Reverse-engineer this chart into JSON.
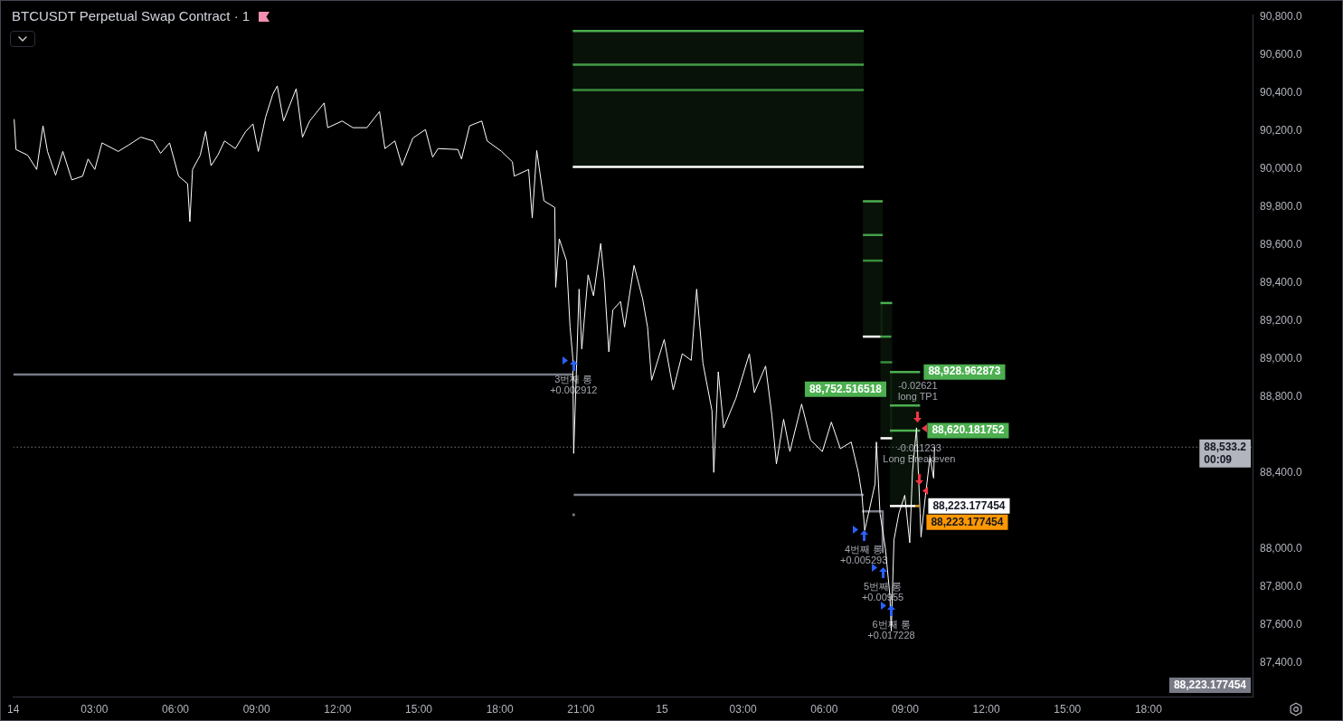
{
  "chart_data": {
    "type": "line",
    "title": "BTCUSDT Perpetual Swap Contract · 1",
    "xlim": [
      "--12-14T00:00",
      "--12-15T21:51"
    ],
    "xticks": [
      {
        "value": "--12-14T00:00",
        "label": "14"
      },
      {
        "value": "--12-14T03:00",
        "label": "03:00"
      },
      {
        "value": "--12-14T06:00",
        "label": "06:00"
      },
      {
        "value": "--12-14T09:00",
        "label": "09:00"
      },
      {
        "value": "--12-14T12:00",
        "label": "12:00"
      },
      {
        "value": "--12-14T15:00",
        "label": "15:00"
      },
      {
        "value": "--12-14T18:00",
        "label": "18:00"
      },
      {
        "value": "--12-14T21:00",
        "label": "21:00"
      },
      {
        "value": "--12-15T00:00",
        "label": "15"
      },
      {
        "value": "--12-15T03:00",
        "label": "03:00"
      },
      {
        "value": "--12-15T06:00",
        "label": "06:00"
      },
      {
        "value": "--12-15T09:00",
        "label": "09:00"
      },
      {
        "value": "--12-15T12:00",
        "label": "12:00"
      },
      {
        "value": "--12-15T15:00",
        "label": "15:00"
      },
      {
        "value": "--12-15T18:00",
        "label": "18:00"
      }
    ],
    "ylim": [
      87220,
      90810
    ],
    "yticks": [
      {
        "value": 87400,
        "label": "87,400.0"
      },
      {
        "value": 87600,
        "label": "87,600.0"
      },
      {
        "value": 87800,
        "label": "87,800.0"
      },
      {
        "value": 88000,
        "label": "88,000.0"
      },
      {
        "value": 88400,
        "label": "88,400.0"
      },
      {
        "value": 88800,
        "label": "88,800.0"
      },
      {
        "value": 89000,
        "label": "89,000.0"
      },
      {
        "value": 89200,
        "label": "89,200.0"
      },
      {
        "value": 89400,
        "label": "89,400.0"
      },
      {
        "value": 89600,
        "label": "89,600.0"
      },
      {
        "value": 89800,
        "label": "89,800.0"
      },
      {
        "value": 90000,
        "label": "90,000.0"
      },
      {
        "value": 90200,
        "label": "90,200.0"
      },
      {
        "value": 90400,
        "label": "90,400.0"
      },
      {
        "value": 90600,
        "label": "90,600.0"
      },
      {
        "value": 90800,
        "label": "90,800.0"
      }
    ],
    "series": [
      {
        "color": "#ffffff",
        "x": [
          "--12-14T00:02",
          "--12-14T00:06",
          "--12-14T00:32",
          "--12-14T00:52",
          "--12-14T01:06",
          "--12-14T01:16",
          "--12-14T01:34",
          "--12-14T01:50",
          "--12-14T02:10",
          "--12-14T02:34",
          "--12-14T02:46",
          "--12-14T03:01",
          "--12-14T03:17",
          "--12-14T03:53",
          "--12-14T04:17",
          "--12-14T04:43",
          "--12-14T05:11",
          "--12-14T05:27",
          "--12-14T05:47",
          "--12-14T06:07",
          "--12-14T06:27",
          "--12-14T06:32",
          "--12-14T06:38",
          "--12-14T06:55",
          "--12-14T07:07",
          "--12-14T07:19",
          "--12-14T07:34",
          "--12-14T07:49",
          "--12-14T08:13",
          "--12-14T08:36",
          "--12-14T08:52",
          "--12-14T09:04",
          "--12-14T09:20",
          "--12-14T09:36",
          "--12-14T09:46",
          "--12-14T10:00",
          "--12-14T10:28",
          "--12-14T10:42",
          "--12-14T10:58",
          "--12-14T11:30",
          "--12-14T11:38",
          "--12-14T12:10",
          "--12-14T12:34",
          "--12-14T13:05",
          "--12-14T13:33",
          "--12-14T13:45",
          "--12-14T14:07",
          "--12-14T14:23",
          "--12-14T14:47",
          "--12-14T15:15",
          "--12-14T15:31",
          "--12-14T15:43",
          "--12-14T16:27",
          "--12-14T16:35",
          "--12-14T16:53",
          "--12-14T17:20",
          "--12-14T17:32",
          "--12-14T18:04",
          "--12-14T18:28",
          "--12-14T18:32",
          "--12-14T19:04",
          "--12-14T19:12",
          "--12-14T19:22",
          "--12-14T19:38",
          "--12-14T20:02",
          "--12-14T20:04",
          "--12-14T20:12",
          "--12-14T20:28",
          "--12-14T20:36",
          "--12-14T20:42",
          "--12-14T20:44",
          "--12-14T20:56",
          "--12-14T21:02",
          "--12-14T21:16",
          "--12-14T21:28",
          "--12-14T21:44",
          "--12-14T21:52",
          "--12-14T22:02",
          "--12-14T22:11",
          "--12-14T22:28",
          "--12-14T22:37",
          "--12-14T22:58",
          "--12-14T23:17",
          "--12-14T23:28",
          "--12-14T23:37",
          "--12-15T00:05",
          "--12-15T00:25",
          "--12-15T00:45",
          "--12-15T01:05",
          "--12-15T01:17",
          "--12-15T01:31",
          "--12-15T01:51",
          "--12-15T01:55",
          "--12-15T02:05",
          "--12-15T02:17",
          "--12-15T02:44",
          "--12-15T03:14",
          "--12-15T03:25",
          "--12-15T03:50",
          "--12-15T04:04",
          "--12-15T04:14",
          "--12-15T04:30",
          "--12-15T04:44",
          "--12-15T05:10",
          "--12-15T05:30",
          "--12-15T05:56",
          "--12-15T06:16",
          "--12-15T06:36",
          "--12-15T07:00",
          "--12-15T07:16",
          "--12-15T07:24",
          "--12-15T07:30",
          "--12-15T07:40",
          "--12-15T07:53",
          "--12-15T07:56",
          "--12-15T08:04",
          "--12-15T08:16",
          "--12-15T08:26",
          "--12-15T08:29",
          "--12-15T08:35",
          "--12-15T08:46",
          "--12-15T08:59",
          "--12-15T09:10",
          "--12-15T09:16",
          "--12-15T09:25",
          "--12-15T09:33",
          "--12-15T09:35",
          "--12-15T09:45",
          "--12-15T09:55",
          "--12-15T10:03",
          "--12-15T10:05"
        ],
        "values": [
          90260,
          90100,
          90070,
          89995,
          90225,
          90090,
          89965,
          90090,
          89940,
          89960,
          90050,
          89995,
          90135,
          90090,
          90125,
          90165,
          90145,
          90080,
          90135,
          89960,
          89920,
          89720,
          89995,
          90070,
          90195,
          90015,
          90070,
          90145,
          90105,
          90195,
          90235,
          90090,
          90270,
          90390,
          90435,
          90250,
          90420,
          90165,
          90250,
          90345,
          90215,
          90250,
          90215,
          90215,
          90300,
          90105,
          90145,
          90015,
          90160,
          90205,
          90060,
          90105,
          90100,
          90050,
          90225,
          90250,
          90145,
          90090,
          90035,
          89960,
          89995,
          89740,
          90095,
          89830,
          89795,
          89375,
          89630,
          89515,
          89165,
          89005,
          88500,
          89365,
          89050,
          89440,
          89330,
          89605,
          89410,
          89035,
          89255,
          89300,
          89165,
          89490,
          89315,
          89165,
          88885,
          89100,
          88835,
          89025,
          88990,
          89365,
          88975,
          88725,
          88400,
          88930,
          88635,
          88790,
          89025,
          88820,
          88960,
          88700,
          88445,
          88680,
          88510,
          88760,
          88570,
          88510,
          88665,
          88525,
          88560,
          88400,
          88280,
          88095,
          88200,
          88340,
          88560,
          88185,
          88000,
          87750,
          87565,
          88045,
          88185,
          88280,
          88030,
          88400,
          88635,
          88185,
          88060,
          88280,
          88480,
          88370,
          88533.2
        ]
      },
      {
        "color": "#787b86",
        "x": [
          "--12-14T00:00",
          "--12-14T20:42"
        ],
        "values": [
          88915,
          88915
        ]
      },
      {
        "color": "#787b86",
        "x": [
          "--12-14T20:44",
          "--12-15T07:28"
        ],
        "values": [
          88282,
          88282
        ]
      },
      {
        "color": "#787b86",
        "x": [
          "--12-15T07:24",
          "--12-15T08:10",
          "--12-15T08:10"
        ],
        "values": [
          88195,
          88195,
          87981
        ]
      },
      {
        "type": "scatter",
        "marker": "square",
        "color": "#787b86",
        "x": [
          "--12-14T20:44"
        ],
        "values": [
          88177
        ]
      },
      {
        "color": "#4caf50",
        "x": [
          "--12-14T20:42",
          "--12-15T07:28"
        ],
        "values": [
          90724,
          90724
        ],
        "lower": [
          90008,
          90008
        ],
        "upper": [
          90724,
          90724
        ]
      },
      {
        "color": "#43a047",
        "x": [
          "--12-14T20:42",
          "--12-15T07:28"
        ],
        "values": [
          90547,
          90547
        ]
      },
      {
        "color": "#388e3c",
        "x": [
          "--12-14T20:42",
          "--12-15T07:28"
        ],
        "values": [
          90413,
          90413
        ]
      },
      {
        "color": "#ffffff",
        "x": [
          "--12-14T20:42",
          "--12-15T07:28"
        ],
        "values": [
          90008,
          90008
        ]
      },
      {
        "color": "#4caf50",
        "x": [
          "--12-15T07:26",
          "--12-15T08:10"
        ],
        "values": [
          89827,
          89827
        ],
        "lower": [
          89115,
          89115
        ],
        "upper": [
          89827,
          89827
        ]
      },
      {
        "color": "#43a047",
        "x": [
          "--12-15T07:26",
          "--12-15T08:10"
        ],
        "values": [
          89650,
          89650
        ]
      },
      {
        "color": "#388e3c",
        "x": [
          "--12-15T07:26",
          "--12-15T08:10"
        ],
        "values": [
          89515,
          89515
        ]
      },
      {
        "color": "#ffffff",
        "x": [
          "--12-15T07:26",
          "--12-15T08:05"
        ],
        "values": [
          89115,
          89115
        ]
      },
      {
        "color": "#4caf50",
        "x": [
          "--12-15T08:05",
          "--12-15T08:31"
        ],
        "values": [
          89292,
          89292
        ],
        "lower": [
          88580,
          88580
        ],
        "upper": [
          89292,
          89292
        ]
      },
      {
        "color": "#43a047",
        "x": [
          "--12-15T08:05",
          "--12-15T08:29"
        ],
        "values": [
          89115,
          89115
        ]
      },
      {
        "color": "#388e3c",
        "x": [
          "--12-15T08:05",
          "--12-15T08:31"
        ],
        "values": [
          88980,
          88980
        ]
      },
      {
        "color": "#ffffff",
        "x": [
          "--12-15T08:05",
          "--12-15T08:31"
        ],
        "values": [
          88580,
          88580
        ]
      },
      {
        "color": "#4caf50",
        "x": [
          "--12-15T08:26",
          "--12-15T09:33"
        ],
        "values": [
          88928.962873,
          88928.962873
        ],
        "lower": [
          88223.177454,
          88223.177454
        ],
        "upper": [
          88928.962873,
          88928.962873
        ],
        "value_labels": [
          null,
          "88,928.962873"
        ]
      },
      {
        "color": "#4caf50",
        "x": [
          "--12-15T08:26",
          "--12-15T09:33"
        ],
        "values": [
          88752.516518,
          88752.516518
        ],
        "value_labels": [
          "88,752.516518",
          null
        ]
      },
      {
        "color": "#4caf50",
        "x": [
          "--12-15T08:26",
          "--12-15T09:33"
        ],
        "values": [
          88620.181752,
          88620.181752
        ],
        "value_labels": [
          null,
          "88,620.181752"
        ]
      },
      {
        "color": "#ffffff",
        "x": [
          "--12-15T08:26",
          "--12-15T09:23"
        ],
        "values": [
          88223.177454,
          88223.177454
        ],
        "value_labels": [
          null,
          "88,223.177454"
        ]
      },
      {
        "color": "#ff9800",
        "x": [
          "--12-15T09:23",
          "--12-15T09:31"
        ],
        "values": [
          88223.177454,
          88223.177454
        ],
        "value_labels": [
          null,
          "88,223.177454"
        ]
      }
    ],
    "ref_lines": [
      {
        "axis": "y",
        "value": 88533.2,
        "label": "88,533.2\n00:09",
        "color": "#b2b5be",
        "line_style": "dotted"
      }
    ],
    "annotations": [
      {
        "text": "3번째 롱\n+0.002912",
        "x": "--12-14T20:44",
        "y": 88990
      },
      {
        "text": "4번째 롱\n+0.005293",
        "x": "--12-15T07:28",
        "y": 88098
      },
      {
        "text": "5번째 롱\n+0.00955",
        "x": "--12-15T08:10",
        "y": 87900
      },
      {
        "text": "6번째 롱\n+0.017228",
        "x": "--12-15T08:29",
        "y": 87700
      },
      {
        "text": "-0.02621\nlong TP1",
        "x": "--12-15T09:28",
        "y": 88665
      },
      {
        "text": "-0.011233\nLong Breakeven",
        "x": "--12-15T09:31",
        "y": 88335
      },
      "88,223.177454"
    ],
    "grid": false,
    "legend": false
  }
}
